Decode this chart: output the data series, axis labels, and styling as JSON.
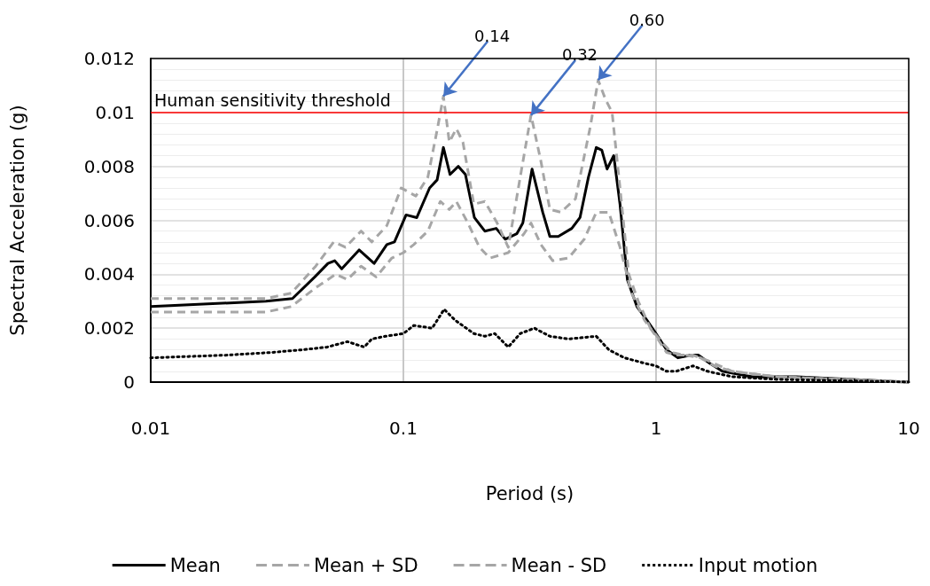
{
  "chart_data": {
    "type": "line",
    "xlabel": "Period (s)",
    "ylabel": "Spectral Acceleration (g)",
    "log": "x",
    "xlim": [
      0.01,
      10
    ],
    "xticks": [
      0.01,
      0.1,
      1,
      10
    ],
    "ylim": [
      0,
      0.012
    ],
    "yticks": [
      0,
      0.002,
      0.004,
      0.006,
      0.008,
      0.01,
      0.012
    ],
    "grid": true,
    "legend": "bottom",
    "marker": "none",
    "ref_lines": [
      {
        "axis": "y",
        "value": 0.01,
        "label": "Human sensitivity threshold",
        "color": "#ff0000"
      }
    ],
    "annotations": [
      {
        "text": "0.14",
        "x": 0.144,
        "y": 0.0106
      },
      {
        "text": "0.32",
        "x": 0.32,
        "y": 0.0099
      },
      {
        "text": "0.60",
        "x": 0.59,
        "y": 0.0112
      }
    ],
    "series": [
      {
        "name": "Mean",
        "color": "#000000",
        "line_style": "solid",
        "x": [
          0.01,
          0.0286,
          0.0364,
          0.0446,
          0.0503,
          0.0535,
          0.057,
          0.0668,
          0.0766,
          0.086,
          0.0922,
          0.1025,
          0.113,
          0.127,
          0.136,
          0.144,
          0.153,
          0.165,
          0.176,
          0.191,
          0.21,
          0.233,
          0.253,
          0.281,
          0.297,
          0.323,
          0.356,
          0.38,
          0.41,
          0.464,
          0.5,
          0.54,
          0.58,
          0.61,
          0.64,
          0.68,
          0.72,
          0.77,
          0.84,
          0.92,
          1.0,
          1.1,
          1.22,
          1.38,
          1.47,
          1.63,
          1.83,
          2.4,
          3.6,
          10
        ],
        "values": [
          0.0028,
          0.003,
          0.0031,
          0.0039,
          0.0044,
          0.0045,
          0.0042,
          0.0049,
          0.0044,
          0.0051,
          0.0052,
          0.0062,
          0.0061,
          0.0072,
          0.0075,
          0.0087,
          0.0077,
          0.008,
          0.0077,
          0.0061,
          0.0056,
          0.0057,
          0.0053,
          0.0055,
          0.0059,
          0.0079,
          0.0063,
          0.0054,
          0.0054,
          0.0057,
          0.0061,
          0.0076,
          0.0087,
          0.0086,
          0.0079,
          0.0084,
          0.0066,
          0.0038,
          0.0028,
          0.0023,
          0.0018,
          0.0012,
          0.0009,
          0.001,
          0.001,
          0.0007,
          0.0004,
          0.0002,
          0.0002,
          0
        ]
      },
      {
        "name": "Mean + SD",
        "color": "#a6a6a6",
        "line_style": "dashed",
        "x": [
          0.01,
          0.0286,
          0.036,
          0.045,
          0.053,
          0.059,
          0.068,
          0.075,
          0.086,
          0.098,
          0.112,
          0.125,
          0.137,
          0.144,
          0.152,
          0.162,
          0.172,
          0.19,
          0.21,
          0.235,
          0.26,
          0.29,
          0.32,
          0.35,
          0.38,
          0.42,
          0.48,
          0.55,
          0.59,
          0.63,
          0.67,
          0.72,
          0.78,
          0.85,
          0.95,
          1.05,
          1.15,
          1.3,
          1.5,
          1.7,
          2.0,
          3.0,
          10
        ],
        "values": [
          0.0031,
          0.0031,
          0.0033,
          0.0043,
          0.0052,
          0.005,
          0.0056,
          0.0052,
          0.0058,
          0.0072,
          0.0069,
          0.0076,
          0.0095,
          0.0106,
          0.0089,
          0.0094,
          0.0089,
          0.0066,
          0.0067,
          0.0059,
          0.005,
          0.0076,
          0.0099,
          0.0082,
          0.0064,
          0.0063,
          0.0068,
          0.0095,
          0.0112,
          0.0105,
          0.01,
          0.0072,
          0.004,
          0.003,
          0.002,
          0.0015,
          0.0011,
          0.001,
          0.0009,
          0.0006,
          0.0004,
          0.0002,
          0
        ]
      },
      {
        "name": "Mean - SD",
        "color": "#a6a6a6",
        "line_style": "dashed",
        "x": [
          0.01,
          0.0286,
          0.036,
          0.045,
          0.054,
          0.06,
          0.068,
          0.078,
          0.09,
          0.1,
          0.11,
          0.125,
          0.14,
          0.152,
          0.162,
          0.18,
          0.2,
          0.22,
          0.26,
          0.3,
          0.32,
          0.35,
          0.39,
          0.45,
          0.52,
          0.58,
          0.65,
          0.72,
          0.8,
          0.9,
          1.0,
          1.1,
          1.2,
          1.4,
          1.6,
          2.0,
          3.0,
          10
        ],
        "values": [
          0.0026,
          0.0026,
          0.0028,
          0.0035,
          0.004,
          0.0038,
          0.0043,
          0.0039,
          0.0046,
          0.0048,
          0.0051,
          0.0056,
          0.0067,
          0.0064,
          0.0067,
          0.0059,
          0.005,
          0.0046,
          0.0048,
          0.0055,
          0.0059,
          0.0051,
          0.0045,
          0.0046,
          0.0053,
          0.0063,
          0.0063,
          0.005,
          0.0033,
          0.0023,
          0.0017,
          0.0011,
          0.001,
          0.001,
          0.0008,
          0.0004,
          0.0002,
          0
        ]
      },
      {
        "name": "Input motion",
        "color": "#000000",
        "line_style": "dotted",
        "x": [
          0.01,
          0.02,
          0.03,
          0.04,
          0.05,
          0.06,
          0.07,
          0.075,
          0.085,
          0.1,
          0.11,
          0.13,
          0.145,
          0.16,
          0.19,
          0.21,
          0.23,
          0.26,
          0.29,
          0.33,
          0.38,
          0.45,
          0.58,
          0.65,
          0.75,
          0.9,
          1.0,
          1.1,
          1.2,
          1.4,
          1.6,
          2.0,
          3.0,
          10
        ],
        "values": [
          0.0009,
          0.001,
          0.0011,
          0.0012,
          0.0013,
          0.0015,
          0.0013,
          0.0016,
          0.0017,
          0.0018,
          0.0021,
          0.002,
          0.0027,
          0.0023,
          0.0018,
          0.0017,
          0.0018,
          0.0013,
          0.0018,
          0.002,
          0.0017,
          0.0016,
          0.0017,
          0.0012,
          0.0009,
          0.0007,
          0.0006,
          0.0004,
          0.0004,
          0.0006,
          0.0004,
          0.0002,
          0.0001,
          0
        ]
      }
    ]
  }
}
